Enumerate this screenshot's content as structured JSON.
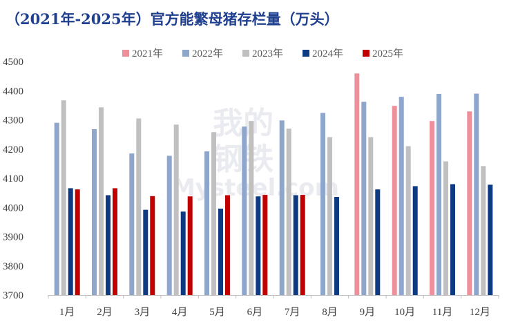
{
  "chart_data": {
    "type": "bar",
    "title": "（2021年-2025年）官方能繁母猪存栏量（万头）",
    "xlabel": "",
    "ylabel": "",
    "ylim": [
      3700,
      4500
    ],
    "yticks": [
      3700,
      3800,
      3900,
      4000,
      4100,
      4200,
      4300,
      4400,
      4500
    ],
    "categories": [
      "1月",
      "2月",
      "3月",
      "4月",
      "5月",
      "6月",
      "7月",
      "8月",
      "9月",
      "10月",
      "11月",
      "12月"
    ],
    "series": [
      {
        "name": "2021年",
        "color": "#ee909b",
        "values": [
          null,
          null,
          null,
          null,
          null,
          null,
          null,
          null,
          4459,
          4348,
          4296,
          4329
        ]
      },
      {
        "name": "2022年",
        "color": "#8ea5cc",
        "values": [
          4290,
          4268,
          4185,
          4177,
          4192,
          4277,
          4298,
          4324,
          4362,
          4379,
          4389,
          4390
        ]
      },
      {
        "name": "2023年",
        "color": "#c0c0c0",
        "values": [
          4367,
          4343,
          4305,
          4284,
          4258,
          4296,
          4270,
          4241,
          4241,
          4210,
          4158,
          4142
        ]
      },
      {
        "name": "2024年",
        "color": "#0d3a80",
        "values": [
          4066,
          4042,
          3992,
          3986,
          3996,
          4038,
          4042,
          4036,
          4062,
          4073,
          4080,
          4078
        ]
      },
      {
        "name": "2025年",
        "color": "#c00000",
        "values": [
          4062,
          4066,
          4039,
          4038,
          4042,
          4043,
          4043,
          null,
          null,
          null,
          null,
          null
        ]
      }
    ],
    "legend_position": "top-center",
    "grid": false,
    "watermark": {
      "line1": "我的",
      "line2": "钢铁",
      "line3": "Mysteel.com"
    }
  }
}
